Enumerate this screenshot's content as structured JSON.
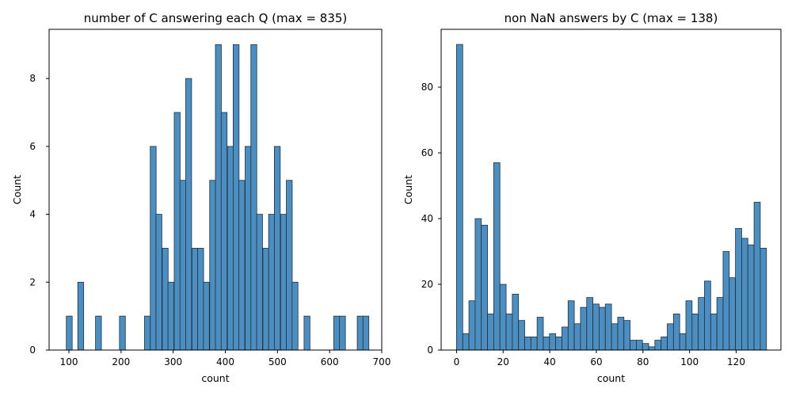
{
  "chart_data": [
    {
      "type": "bar",
      "title": "number of C answering each Q (max = 835)",
      "xlabel": "count",
      "ylabel": "Count",
      "xlim": [
        62,
        700
      ],
      "ylim": [
        0,
        9.45
      ],
      "xticks": [
        100,
        200,
        300,
        400,
        500,
        600,
        700
      ],
      "yticks": [
        0,
        2,
        4,
        6,
        8
      ],
      "bin_width": 11.3,
      "bars": [
        {
          "x": 95,
          "y": 1
        },
        {
          "x": 117,
          "y": 2
        },
        {
          "x": 151,
          "y": 1
        },
        {
          "x": 197,
          "y": 1
        },
        {
          "x": 245,
          "y": 1
        },
        {
          "x": 256,
          "y": 6
        },
        {
          "x": 267,
          "y": 4
        },
        {
          "x": 279,
          "y": 3
        },
        {
          "x": 290,
          "y": 2
        },
        {
          "x": 302,
          "y": 7
        },
        {
          "x": 313,
          "y": 5
        },
        {
          "x": 324,
          "y": 8
        },
        {
          "x": 336,
          "y": 3
        },
        {
          "x": 347,
          "y": 3
        },
        {
          "x": 358,
          "y": 2
        },
        {
          "x": 370,
          "y": 5
        },
        {
          "x": 381,
          "y": 9
        },
        {
          "x": 392,
          "y": 7
        },
        {
          "x": 404,
          "y": 6
        },
        {
          "x": 415,
          "y": 9
        },
        {
          "x": 426,
          "y": 5
        },
        {
          "x": 438,
          "y": 6
        },
        {
          "x": 449,
          "y": 9
        },
        {
          "x": 460,
          "y": 4
        },
        {
          "x": 472,
          "y": 3
        },
        {
          "x": 483,
          "y": 4
        },
        {
          "x": 494,
          "y": 6
        },
        {
          "x": 506,
          "y": 4
        },
        {
          "x": 517,
          "y": 5
        },
        {
          "x": 528,
          "y": 2
        },
        {
          "x": 551,
          "y": 1
        },
        {
          "x": 608,
          "y": 1
        },
        {
          "x": 619,
          "y": 1
        },
        {
          "x": 653,
          "y": 1
        },
        {
          "x": 664,
          "y": 1
        }
      ]
    },
    {
      "type": "bar",
      "title": "non NaN answers by C (max = 138)",
      "xlabel": "count",
      "ylabel": "Count",
      "xlim": [
        -6.6,
        139.2
      ],
      "ylim": [
        0,
        97.6
      ],
      "xticks": [
        0,
        20,
        40,
        60,
        80,
        100,
        120
      ],
      "yticks": [
        0,
        20,
        40,
        60,
        80
      ],
      "bin_width": 2.66,
      "bars": [
        {
          "x": 0.0,
          "y": 93
        },
        {
          "x": 2.66,
          "y": 5
        },
        {
          "x": 5.32,
          "y": 15
        },
        {
          "x": 7.98,
          "y": 40
        },
        {
          "x": 10.64,
          "y": 38
        },
        {
          "x": 13.3,
          "y": 11
        },
        {
          "x": 15.96,
          "y": 57
        },
        {
          "x": 18.62,
          "y": 20
        },
        {
          "x": 21.28,
          "y": 11
        },
        {
          "x": 23.94,
          "y": 17
        },
        {
          "x": 26.6,
          "y": 9
        },
        {
          "x": 29.26,
          "y": 4
        },
        {
          "x": 31.92,
          "y": 4
        },
        {
          "x": 34.58,
          "y": 10
        },
        {
          "x": 37.24,
          "y": 4
        },
        {
          "x": 39.9,
          "y": 5
        },
        {
          "x": 42.56,
          "y": 4
        },
        {
          "x": 45.22,
          "y": 7
        },
        {
          "x": 47.88,
          "y": 15
        },
        {
          "x": 50.54,
          "y": 8
        },
        {
          "x": 53.2,
          "y": 13
        },
        {
          "x": 55.86,
          "y": 16
        },
        {
          "x": 58.52,
          "y": 14
        },
        {
          "x": 61.18,
          "y": 13
        },
        {
          "x": 63.84,
          "y": 14
        },
        {
          "x": 66.5,
          "y": 8
        },
        {
          "x": 69.16,
          "y": 10
        },
        {
          "x": 71.82,
          "y": 9
        },
        {
          "x": 74.48,
          "y": 3
        },
        {
          "x": 77.14,
          "y": 3
        },
        {
          "x": 79.8,
          "y": 2
        },
        {
          "x": 82.46,
          "y": 1
        },
        {
          "x": 85.12,
          "y": 3
        },
        {
          "x": 87.78,
          "y": 4
        },
        {
          "x": 90.44,
          "y": 8
        },
        {
          "x": 93.1,
          "y": 11
        },
        {
          "x": 95.76,
          "y": 5
        },
        {
          "x": 98.42,
          "y": 15
        },
        {
          "x": 101.08,
          "y": 11
        },
        {
          "x": 103.74,
          "y": 16
        },
        {
          "x": 106.4,
          "y": 21
        },
        {
          "x": 109.06,
          "y": 11
        },
        {
          "x": 111.72,
          "y": 16
        },
        {
          "x": 114.38,
          "y": 30
        },
        {
          "x": 117.04,
          "y": 22
        },
        {
          "x": 119.7,
          "y": 37
        },
        {
          "x": 122.36,
          "y": 34
        },
        {
          "x": 125.02,
          "y": 32
        },
        {
          "x": 127.68,
          "y": 45
        },
        {
          "x": 130.34,
          "y": 31
        }
      ]
    }
  ]
}
